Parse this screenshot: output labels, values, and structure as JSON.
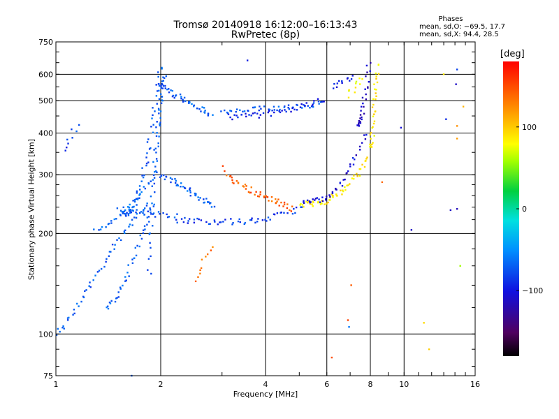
{
  "title": "Tromsø 20140918 16:12:00–16:13:43",
  "subtitle": "RwPretec (8p)",
  "phase_panel": {
    "heading": "Phases",
    "o_line": "mean, sd,O: −69.5, 17.7",
    "x_line": "mean, sd,X:  94.4, 28.5"
  },
  "colorbar": {
    "unit": "[deg]",
    "range": [
      -180,
      180
    ],
    "ticks": [
      {
        "value": 100,
        "label": "100"
      },
      {
        "value": 0,
        "label": "0"
      },
      {
        "value": -100,
        "label": "−100"
      }
    ]
  },
  "chart_data": {
    "type": "scatter",
    "title": "Tromsø 20140918 16:12:00–16:13:43",
    "subtitle": "RwPretec (8p)",
    "xlabel": "Frequency [MHz]",
    "ylabel": "Stationary phase Virtual Height [km]",
    "x_scale": "log",
    "y_scale": "log",
    "xlim": [
      1,
      16
    ],
    "ylim": [
      75,
      750
    ],
    "x_ticks": [
      1,
      2,
      4,
      6,
      8,
      10,
      16
    ],
    "y_ticks": [
      75,
      100,
      200,
      300,
      400,
      500,
      600,
      750
    ],
    "grid": true,
    "series": [
      {
        "traces": [
          {
            "x0": 1.0,
            "x1": 1.85,
            "h0": 100,
            "h1": 250,
            "kind": "pow",
            "p": 1.3,
            "color_value": -70,
            "n": 55
          },
          {
            "x0": 1.4,
            "x1": 1.9,
            "h0": 120,
            "h1": 240,
            "kind": "pow",
            "p": 1.6,
            "color_value": -70,
            "n": 40
          },
          {
            "x0": 1.3,
            "x1": 1.95,
            "h0": 205,
            "h1": 300,
            "kind": "pow",
            "p": 1.5,
            "color_value": -65,
            "n": 30
          },
          {
            "x0": 1.55,
            "x1": 2.0,
            "h0": 230,
            "h1": 640,
            "kind": "pow",
            "p": 3.0,
            "color_value": -70,
            "n": 60
          },
          {
            "x0": 1.85,
            "x1": 2.05,
            "h0": 150,
            "h1": 600,
            "kind": "lin",
            "color_value": -72,
            "n": 60
          },
          {
            "x0": 1.95,
            "x1": 2.8,
            "h0": 560,
            "h1": 450,
            "kind": "lin",
            "color_value": -70,
            "n": 45
          },
          {
            "x0": 2.0,
            "x1": 2.85,
            "h0": 300,
            "h1": 240,
            "kind": "lin",
            "color_value": -70,
            "n": 45
          },
          {
            "x0": 1.5,
            "x1": 2.2,
            "h0": 235,
            "h1": 225,
            "kind": "lin",
            "color_value": -72,
            "n": 25
          },
          {
            "x0": 3.0,
            "x1": 5.8,
            "h0": 460,
            "h1": 490,
            "kind": "lin",
            "color_value": -72,
            "n": 45
          },
          {
            "x0": 2.2,
            "x1": 5.1,
            "h0": 220,
            "h1": 240,
            "kind": "bowl",
            "hmid": 217,
            "color_value": -82,
            "n": 55
          },
          {
            "x0": 3.1,
            "x1": 5.9,
            "h0": 448,
            "h1": 505,
            "kind": "pow",
            "p": 2.2,
            "color_value": -95,
            "n": 45
          },
          {
            "x0": 3.05,
            "x1": 4.8,
            "h0": 320,
            "h1": 238,
            "kind": "pow",
            "p": 0.5,
            "color_value": 145,
            "n": 50
          },
          {
            "x0": 5.0,
            "x1": 7.9,
            "h0": 245,
            "h1": 340,
            "kind": "pow",
            "p": 3.0,
            "color_value": 90,
            "n": 55
          },
          {
            "x0": 5.1,
            "x1": 7.8,
            "h0": 250,
            "h1": 400,
            "kind": "pow",
            "p": 3.0,
            "color_value": -105,
            "n": 45
          },
          {
            "x0": 7.3,
            "x1": 7.95,
            "h0": 420,
            "h1": 640,
            "kind": "pow",
            "p": 2.0,
            "color_value": -112,
            "n": 30
          },
          {
            "x0": 8.0,
            "x1": 8.4,
            "h0": 360,
            "h1": 640,
            "kind": "pow",
            "p": 1.5,
            "color_value": 88,
            "n": 35
          },
          {
            "x0": 6.3,
            "x1": 7.1,
            "h0": 550,
            "h1": 590,
            "kind": "lin",
            "color_value": -100,
            "n": 12
          },
          {
            "x0": 6.9,
            "x1": 7.6,
            "h0": 520,
            "h1": 580,
            "kind": "lin",
            "color_value": 80,
            "n": 10
          },
          {
            "x0": 2.5,
            "x1": 2.8,
            "h0": 145,
            "h1": 180,
            "kind": "lin",
            "color_value": 140,
            "n": 10
          },
          {
            "x0": 1.05,
            "x1": 1.15,
            "h0": 360,
            "h1": 420,
            "kind": "lin",
            "color_value": -80,
            "n": 8
          }
        ]
      }
    ],
    "isolated_points": [
      {
        "x": 3.55,
        "y": 660,
        "color_value": -95
      },
      {
        "x": 6.2,
        "y": 85,
        "color_value": 150
      },
      {
        "x": 6.9,
        "y": 110,
        "color_value": 155
      },
      {
        "x": 6.95,
        "y": 105,
        "color_value": -60
      },
      {
        "x": 10.5,
        "y": 205,
        "color_value": -110
      },
      {
        "x": 11.4,
        "y": 108,
        "color_value": 95
      },
      {
        "x": 11.8,
        "y": 90,
        "color_value": 100
      },
      {
        "x": 13.0,
        "y": 600,
        "color_value": 90
      },
      {
        "x": 14.2,
        "y": 620,
        "color_value": -80
      },
      {
        "x": 14.1,
        "y": 560,
        "color_value": -110
      },
      {
        "x": 14.2,
        "y": 420,
        "color_value": 125
      },
      {
        "x": 14.2,
        "y": 385,
        "color_value": 120
      },
      {
        "x": 13.6,
        "y": 235,
        "color_value": -110
      },
      {
        "x": 14.2,
        "y": 237,
        "color_value": -115
      },
      {
        "x": 14.5,
        "y": 160,
        "color_value": 60
      },
      {
        "x": 13.2,
        "y": 440,
        "color_value": -90
      },
      {
        "x": 9.8,
        "y": 415,
        "color_value": -105
      },
      {
        "x": 8.65,
        "y": 285,
        "color_value": 140
      },
      {
        "x": 1.65,
        "y": 75,
        "color_value": -70
      },
      {
        "x": 7.05,
        "y": 140,
        "color_value": 145
      },
      {
        "x": 14.8,
        "y": 480,
        "color_value": 110
      }
    ]
  }
}
